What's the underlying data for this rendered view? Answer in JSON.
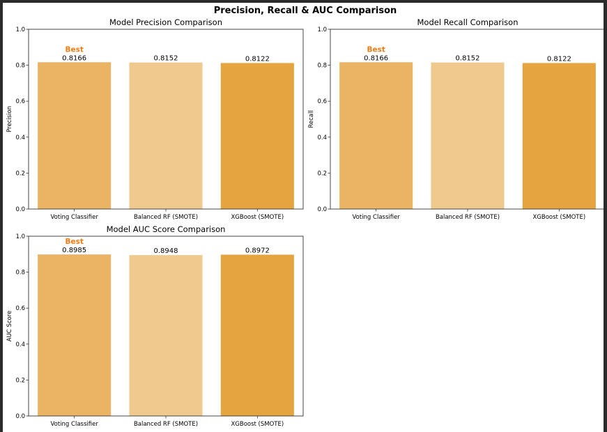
{
  "figure": {
    "suptitle": "Precision, Recall & AUC Comparison"
  },
  "colors": {
    "bars": [
      "#EBB464",
      "#F0C98F",
      "#E4A440"
    ],
    "best": "#F07C16",
    "axis": "#333333",
    "background": "#ffffff",
    "frame": "#2b2b2b"
  },
  "chart_data": [
    {
      "type": "bar",
      "title": "Model Precision Comparison",
      "xlabel": "",
      "ylabel": "Precision",
      "ylim": [
        0,
        1.0
      ],
      "yticks": [
        "0.0",
        "0.2",
        "0.4",
        "0.6",
        "0.8",
        "1.0"
      ],
      "categories": [
        "Voting Classifier",
        "Balanced RF (SMOTE)",
        "XGBoost (SMOTE)"
      ],
      "values": [
        0.8166,
        0.8152,
        0.8122
      ],
      "value_labels": [
        "0.8166",
        "0.8152",
        "0.8122"
      ],
      "annotation": {
        "text": "Best",
        "category_index": 0
      },
      "grid": false,
      "legend": "none"
    },
    {
      "type": "bar",
      "title": "Model Recall Comparison",
      "xlabel": "",
      "ylabel": "Recall",
      "ylim": [
        0,
        1.0
      ],
      "yticks": [
        "0.0",
        "0.2",
        "0.4",
        "0.6",
        "0.8",
        "1.0"
      ],
      "categories": [
        "Voting Classifier",
        "Balanced RF (SMOTE)",
        "XGBoost (SMOTE)"
      ],
      "values": [
        0.8166,
        0.8152,
        0.8122
      ],
      "value_labels": [
        "0.8166",
        "0.8152",
        "0.8122"
      ],
      "annotation": {
        "text": "Best",
        "category_index": 0
      },
      "grid": false,
      "legend": "none"
    },
    {
      "type": "bar",
      "title": "Model AUC Score Comparison",
      "xlabel": "",
      "ylabel": "AUC Score",
      "ylim": [
        0,
        1.0
      ],
      "yticks": [
        "0.0",
        "0.2",
        "0.4",
        "0.6",
        "0.8",
        "1.0"
      ],
      "categories": [
        "Voting Classifier",
        "Balanced RF (SMOTE)",
        "XGBoost (SMOTE)"
      ],
      "values": [
        0.8985,
        0.8948,
        0.8972
      ],
      "value_labels": [
        "0.8985",
        "0.8948",
        "0.8972"
      ],
      "annotation": {
        "text": "Best",
        "category_index": 0
      },
      "grid": false,
      "legend": "none"
    }
  ]
}
